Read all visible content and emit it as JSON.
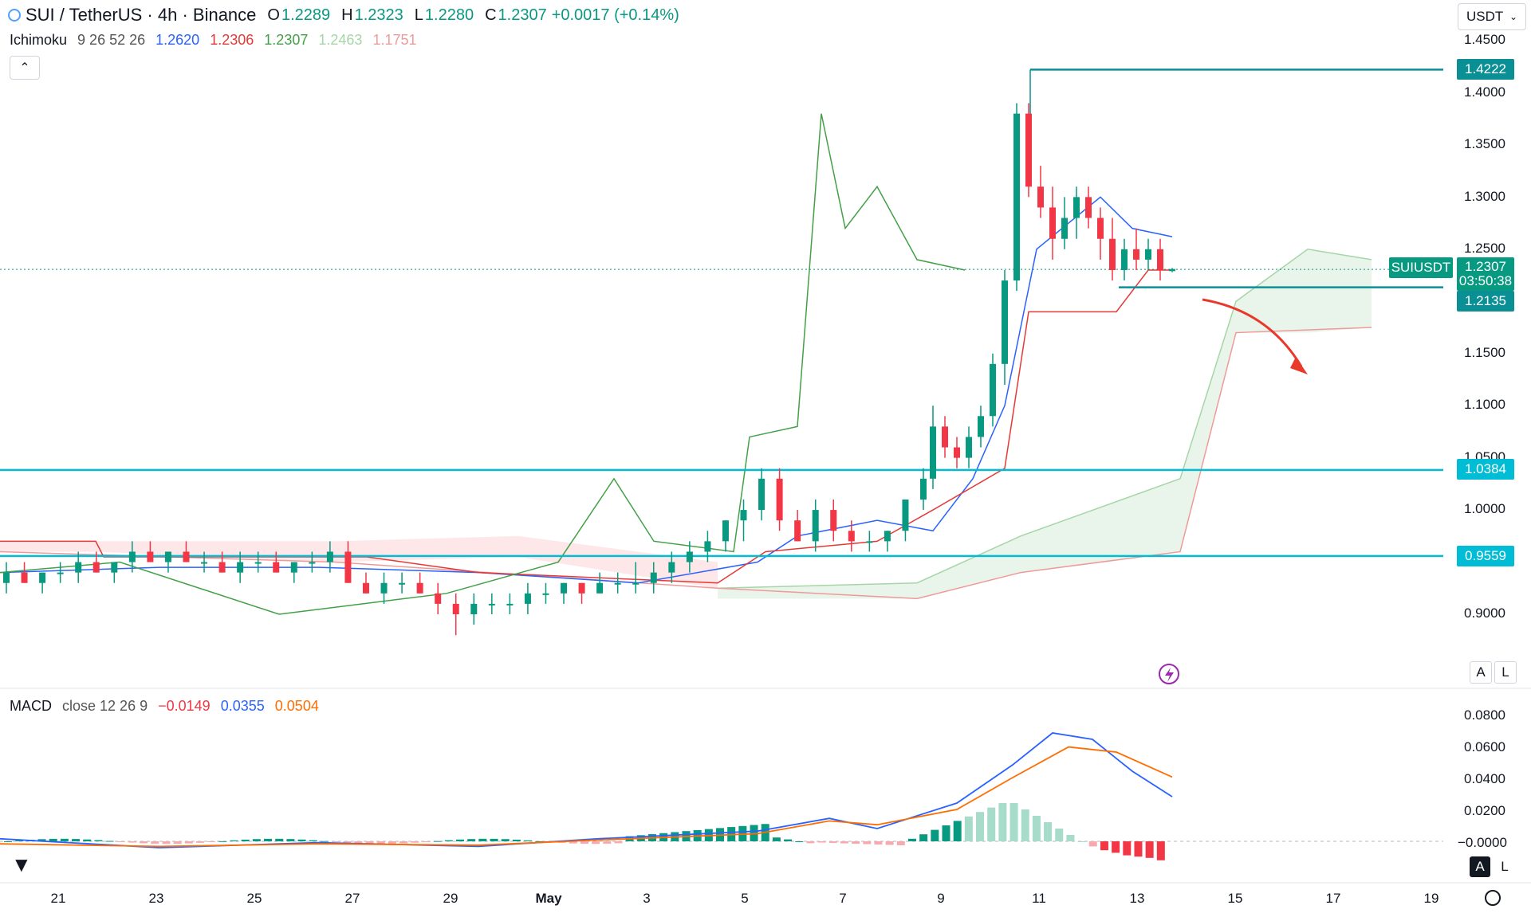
{
  "header": {
    "symbol": "SUI / TetherUS · 4h · Binance",
    "o_label": "O",
    "o_value": "1.2289",
    "h_label": "H",
    "h_value": "1.2323",
    "l_label": "L",
    "l_value": "1.2280",
    "c_label": "C",
    "c_value": "1.2307",
    "change": "+0.0017 (+0.14%)"
  },
  "ichimoku": {
    "label": "Ichimoku",
    "params": "9 26 52 26",
    "values": [
      "1.2620",
      "1.2306",
      "1.2307",
      "1.2463",
      "1.1751"
    ],
    "colors": [
      "#2962ff",
      "#e53935",
      "#43a047",
      "#a5d6a7",
      "#ef9a9a"
    ]
  },
  "currency_button": {
    "label": "USDT",
    "chevron": "chevron-down-icon"
  },
  "collapse_icon": "chevron-up-icon",
  "price_axis": {
    "ticks": [
      "1.4500",
      "1.4000",
      "1.3500",
      "1.3000",
      "1.2500",
      "1.1500",
      "1.1000",
      "1.0500",
      "1.0000",
      "0.9000"
    ],
    "tags": {
      "top": "1.4222",
      "symbol": "SUIUSDT",
      "last_price": "1.2307",
      "countdown": "03:50:38",
      "support1": "1.2135",
      "level_a": "1.0384",
      "level_b": "0.9559"
    }
  },
  "macd": {
    "label": "MACD",
    "params": "close 12 26 9",
    "hist": "−0.0149",
    "macd": "0.0355",
    "signal": "0.0504",
    "ticks": [
      "0.0800",
      "0.0600",
      "0.0400",
      "0.0200",
      "−0.0000"
    ]
  },
  "time_axis": {
    "ticks": [
      "21",
      "23",
      "25",
      "27",
      "29",
      "May",
      "3",
      "5",
      "7",
      "9",
      "11",
      "13",
      "15",
      "17",
      "19"
    ]
  },
  "scale_buttons": {
    "auto": "A",
    "log": "L"
  },
  "colors": {
    "up": "#089981",
    "down": "#f23645",
    "tenkan": "#2962ff",
    "kijun": "#e53935",
    "chikou": "#43a047",
    "level": "#00bcd4",
    "tag_teal": "#0a8f94",
    "macd_line": "#2962ff",
    "signal_line": "#ff6d00"
  },
  "chart_data": {
    "type": "candlestick",
    "timeframe": "4h",
    "price_range": [
      0.87,
      1.46
    ],
    "horizontal_levels": [
      1.4222,
      1.2135,
      1.0384,
      0.9559
    ],
    "candles": [
      [
        0.93,
        0.95,
        0.92,
        0.94
      ],
      [
        0.94,
        0.95,
        0.93,
        0.93
      ],
      [
        0.93,
        0.94,
        0.92,
        0.94
      ],
      [
        0.94,
        0.95,
        0.93,
        0.94
      ],
      [
        0.94,
        0.96,
        0.93,
        0.95
      ],
      [
        0.95,
        0.96,
        0.94,
        0.94
      ],
      [
        0.94,
        0.95,
        0.93,
        0.95
      ],
      [
        0.95,
        0.97,
        0.94,
        0.96
      ],
      [
        0.96,
        0.97,
        0.95,
        0.95
      ],
      [
        0.95,
        0.96,
        0.94,
        0.96
      ],
      [
        0.96,
        0.97,
        0.95,
        0.95
      ],
      [
        0.95,
        0.96,
        0.94,
        0.95
      ],
      [
        0.95,
        0.96,
        0.94,
        0.94
      ],
      [
        0.94,
        0.96,
        0.93,
        0.95
      ],
      [
        0.95,
        0.96,
        0.94,
        0.95
      ],
      [
        0.95,
        0.96,
        0.94,
        0.94
      ],
      [
        0.94,
        0.95,
        0.93,
        0.95
      ],
      [
        0.95,
        0.96,
        0.94,
        0.95
      ],
      [
        0.95,
        0.97,
        0.94,
        0.96
      ],
      [
        0.96,
        0.97,
        0.93,
        0.93
      ],
      [
        0.93,
        0.94,
        0.92,
        0.92
      ],
      [
        0.92,
        0.94,
        0.91,
        0.93
      ],
      [
        0.93,
        0.94,
        0.92,
        0.93
      ],
      [
        0.93,
        0.94,
        0.92,
        0.92
      ],
      [
        0.92,
        0.93,
        0.9,
        0.91
      ],
      [
        0.91,
        0.92,
        0.88,
        0.9
      ],
      [
        0.9,
        0.92,
        0.89,
        0.91
      ],
      [
        0.91,
        0.92,
        0.9,
        0.91
      ],
      [
        0.91,
        0.92,
        0.9,
        0.91
      ],
      [
        0.91,
        0.93,
        0.9,
        0.92
      ],
      [
        0.92,
        0.93,
        0.91,
        0.92
      ],
      [
        0.92,
        0.93,
        0.91,
        0.93
      ],
      [
        0.93,
        0.93,
        0.91,
        0.92
      ],
      [
        0.92,
        0.94,
        0.92,
        0.93
      ],
      [
        0.93,
        0.94,
        0.92,
        0.93
      ],
      [
        0.93,
        0.95,
        0.92,
        0.93
      ],
      [
        0.93,
        0.95,
        0.92,
        0.94
      ],
      [
        0.94,
        0.96,
        0.93,
        0.95
      ],
      [
        0.95,
        0.97,
        0.94,
        0.96
      ],
      [
        0.96,
        0.98,
        0.95,
        0.97
      ],
      [
        0.97,
        0.99,
        0.96,
        0.99
      ],
      [
        0.99,
        1.01,
        0.97,
        1.0
      ],
      [
        1.0,
        1.04,
        0.99,
        1.03
      ],
      [
        1.03,
        1.04,
        0.98,
        0.99
      ],
      [
        0.99,
        1.0,
        0.97,
        0.97
      ],
      [
        0.97,
        1.01,
        0.96,
        1.0
      ],
      [
        1.0,
        1.01,
        0.97,
        0.98
      ],
      [
        0.98,
        0.99,
        0.96,
        0.97
      ],
      [
        0.97,
        0.98,
        0.96,
        0.97
      ],
      [
        0.97,
        0.98,
        0.96,
        0.98
      ],
      [
        0.98,
        1.01,
        0.97,
        1.01
      ],
      [
        1.01,
        1.04,
        1.0,
        1.03
      ],
      [
        1.03,
        1.1,
        1.02,
        1.08
      ],
      [
        1.08,
        1.09,
        1.05,
        1.06
      ],
      [
        1.06,
        1.07,
        1.04,
        1.05
      ],
      [
        1.05,
        1.08,
        1.04,
        1.07
      ],
      [
        1.07,
        1.1,
        1.06,
        1.09
      ],
      [
        1.09,
        1.15,
        1.08,
        1.14
      ],
      [
        1.14,
        1.23,
        1.12,
        1.22
      ],
      [
        1.22,
        1.39,
        1.21,
        1.38
      ],
      [
        1.38,
        1.39,
        1.3,
        1.31
      ],
      [
        1.31,
        1.33,
        1.28,
        1.29
      ],
      [
        1.29,
        1.31,
        1.24,
        1.26
      ],
      [
        1.26,
        1.3,
        1.25,
        1.28
      ],
      [
        1.28,
        1.31,
        1.26,
        1.3
      ],
      [
        1.3,
        1.31,
        1.27,
        1.28
      ],
      [
        1.28,
        1.29,
        1.24,
        1.26
      ],
      [
        1.26,
        1.28,
        1.22,
        1.23
      ],
      [
        1.23,
        1.26,
        1.22,
        1.25
      ],
      [
        1.25,
        1.27,
        1.23,
        1.24
      ],
      [
        1.24,
        1.26,
        1.23,
        1.25
      ],
      [
        1.25,
        1.26,
        1.22,
        1.23
      ],
      [
        1.229,
        1.232,
        1.228,
        1.231
      ]
    ]
  }
}
